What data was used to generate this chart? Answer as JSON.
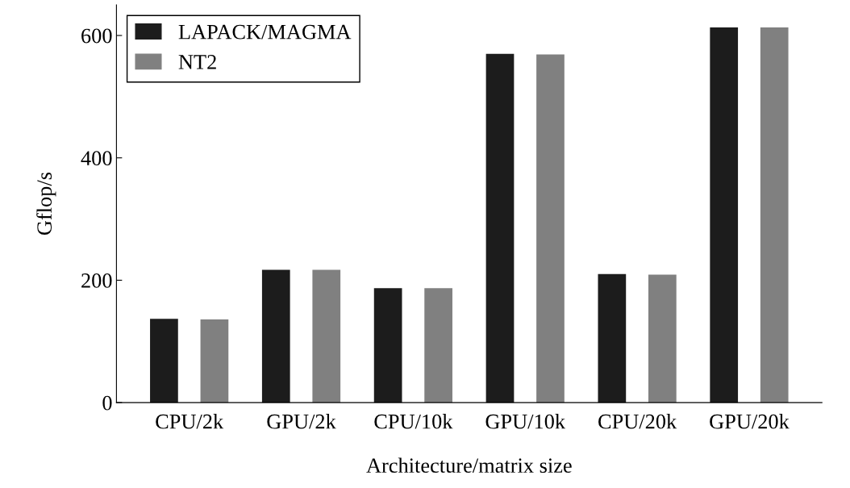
{
  "chart_data": {
    "type": "bar",
    "xlabel": "Architecture/matrix size",
    "ylabel": "Gflop/s",
    "categories": [
      "CPU/2k",
      "GPU/2k",
      "CPU/10k",
      "GPU/10k",
      "CPU/20k",
      "GPU/20k"
    ],
    "series": [
      {
        "name": "LAPACK/MAGMA",
        "color": "#1c1c1c",
        "values": [
          137,
          217,
          187,
          570,
          210,
          613
        ]
      },
      {
        "name": "NT2",
        "color": "#808080",
        "values": [
          136,
          217,
          187,
          569,
          209,
          613
        ]
      }
    ],
    "ylim": [
      0,
      650
    ],
    "yticks": [
      0,
      200,
      400,
      600
    ],
    "grid": false,
    "legend": "top left"
  }
}
